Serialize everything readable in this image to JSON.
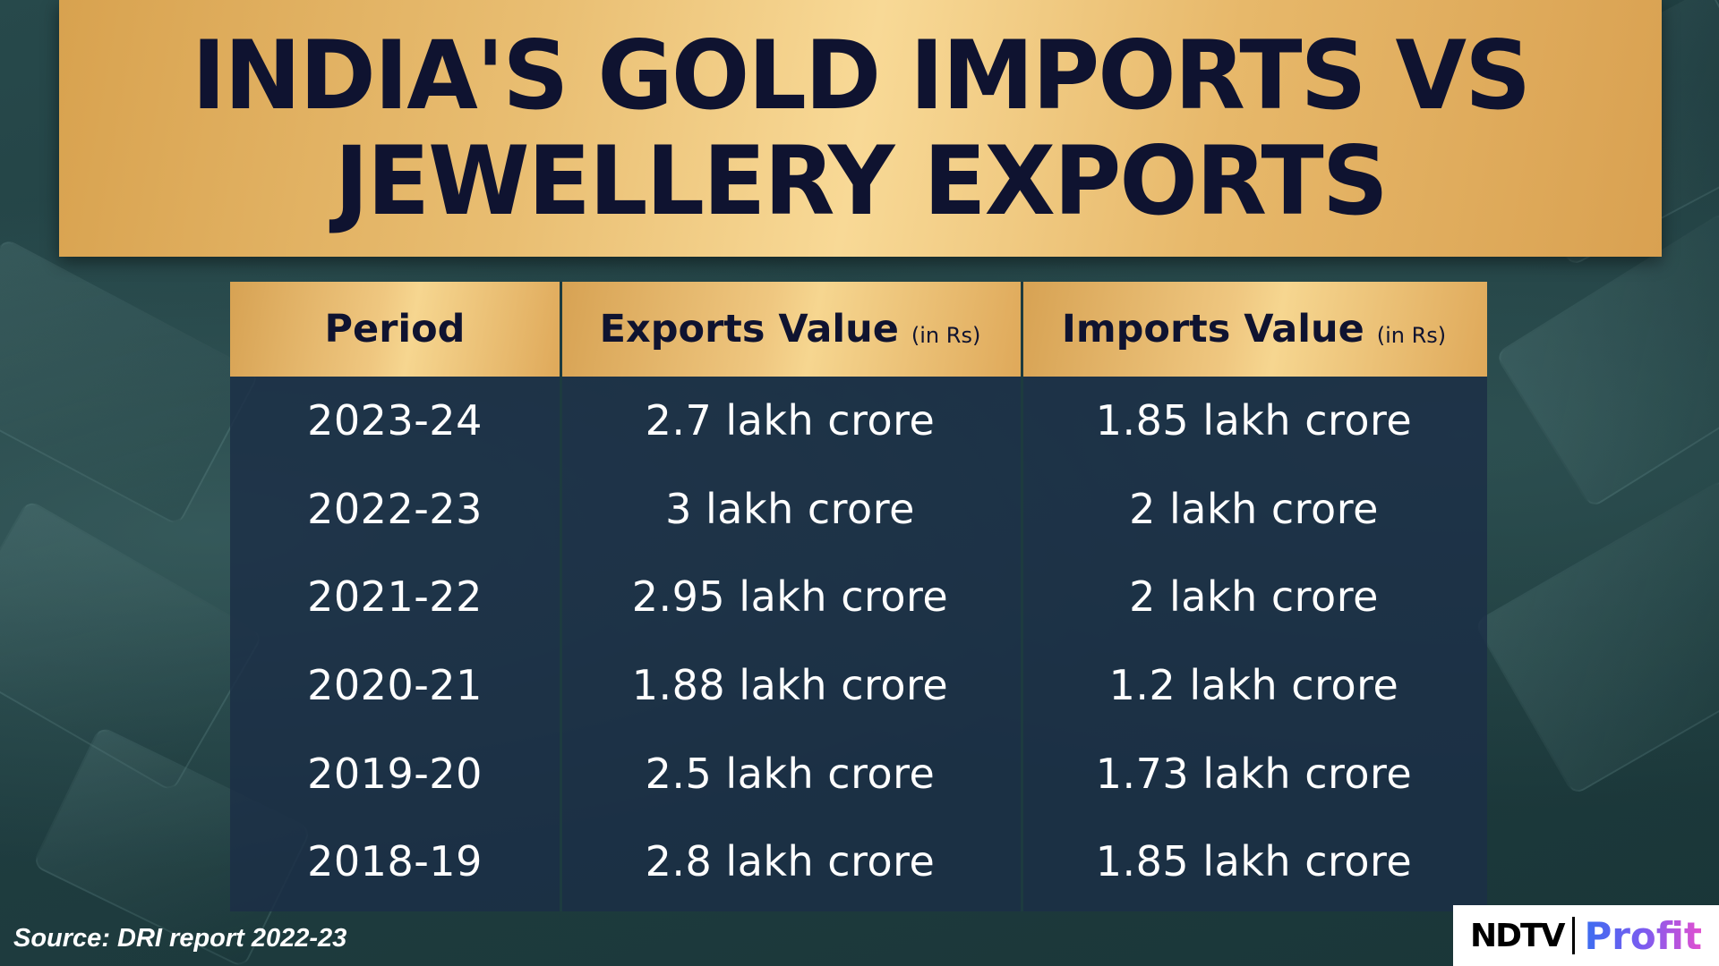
{
  "title_line1": "INDIA'S GOLD IMPORTS VS",
  "title_line2": "JEWELLERY EXPORTS",
  "chart_data": {
    "type": "table",
    "title": "INDIA'S GOLD IMPORTS VS JEWELLERY EXPORTS",
    "columns": [
      {
        "label": "Period",
        "sub": ""
      },
      {
        "label": "Exports Value",
        "sub": "(in Rs)"
      },
      {
        "label": "Imports Value",
        "sub": "(in Rs)"
      }
    ],
    "rows": [
      [
        "2023-24",
        "2.7 lakh crore",
        "1.85 lakh crore"
      ],
      [
        "2022-23",
        "3 lakh crore",
        "2 lakh crore"
      ],
      [
        "2021-22",
        "2.95 lakh crore",
        "2 lakh crore"
      ],
      [
        "2020-21",
        "1.88 lakh crore",
        "1.2 lakh crore"
      ],
      [
        "2019-20",
        "2.5 lakh crore",
        "1.73 lakh crore"
      ],
      [
        "2018-19",
        "2.8 lakh crore",
        "1.85 lakh crore"
      ]
    ]
  },
  "source": "Source: DRI report 2022-23",
  "logo": {
    "left": "NDTV",
    "right": "Profit"
  },
  "colors": {
    "gold": "#efc780",
    "navy_text": "#0f1330",
    "table_bg": "#1c2f46",
    "background": "#1f3d40"
  }
}
